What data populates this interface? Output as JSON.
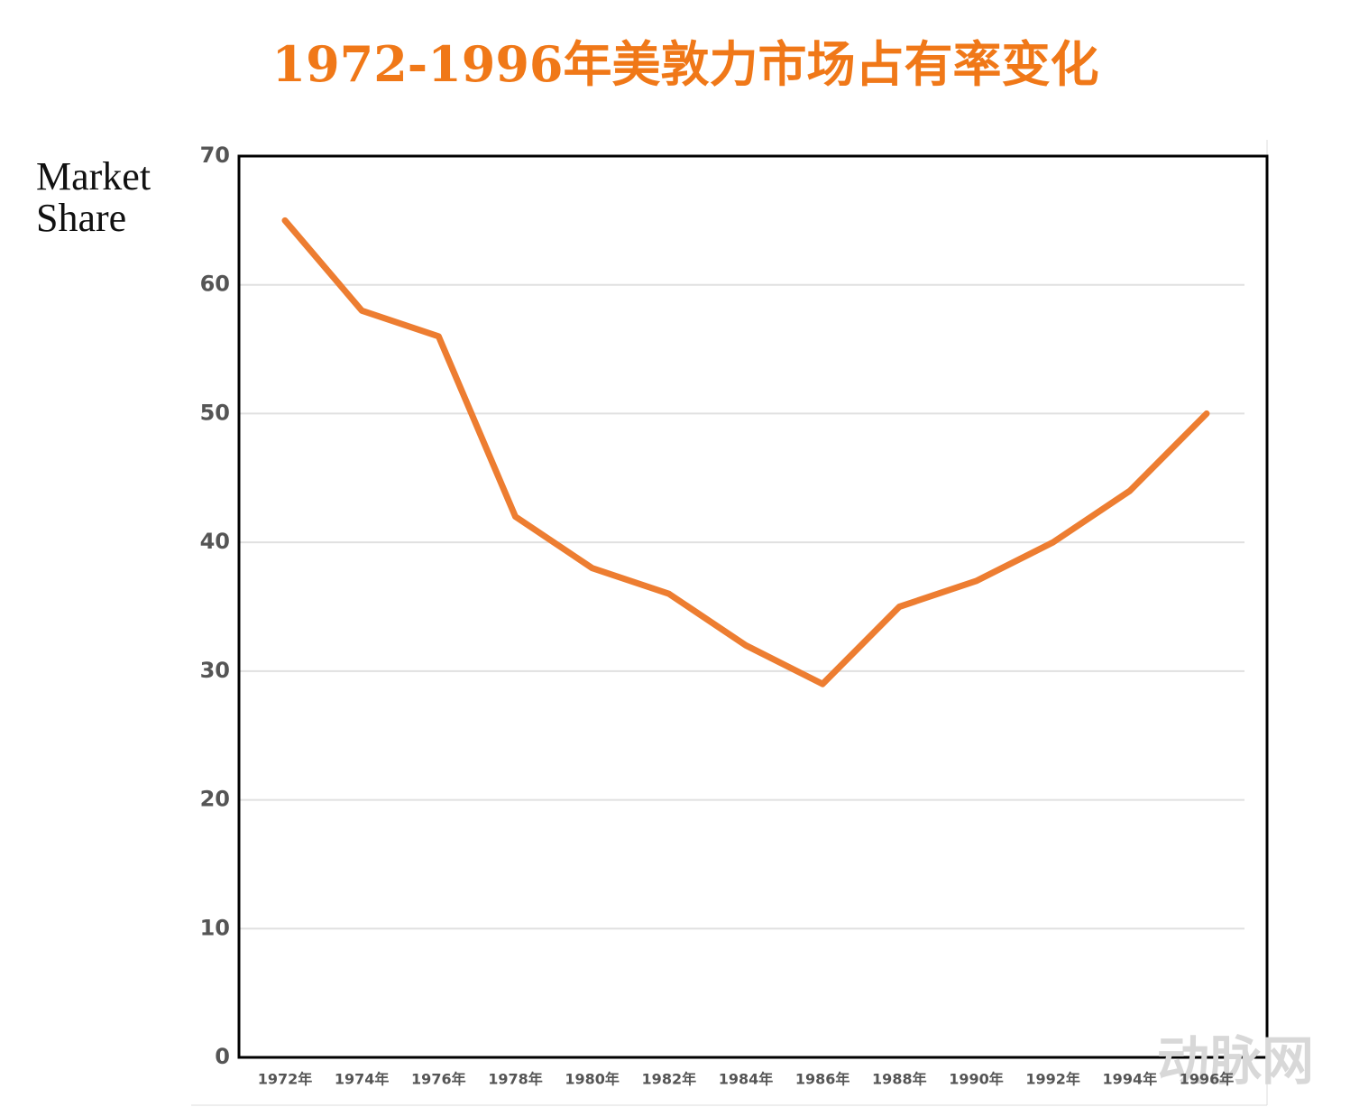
{
  "chart_data": {
    "type": "line",
    "title": "1972-1996年美敦力市场占有率变化",
    "ylabel": [
      "Market",
      "Share"
    ],
    "categories": [
      "1972年",
      "1974年",
      "1976年",
      "1978年",
      "1980年",
      "1982年",
      "1984年",
      "1986年",
      "1988年",
      "1990年",
      "1992年",
      "1994年",
      "1996年"
    ],
    "values": [
      65,
      58,
      56,
      42,
      38,
      36,
      32,
      29,
      35,
      37,
      40,
      44,
      50
    ],
    "color": "#ed7d31",
    "ylim": [
      0,
      70
    ],
    "yticks": [
      0,
      10,
      20,
      30,
      40,
      50,
      60,
      70
    ],
    "grid": true,
    "watermark": "动脉网"
  }
}
